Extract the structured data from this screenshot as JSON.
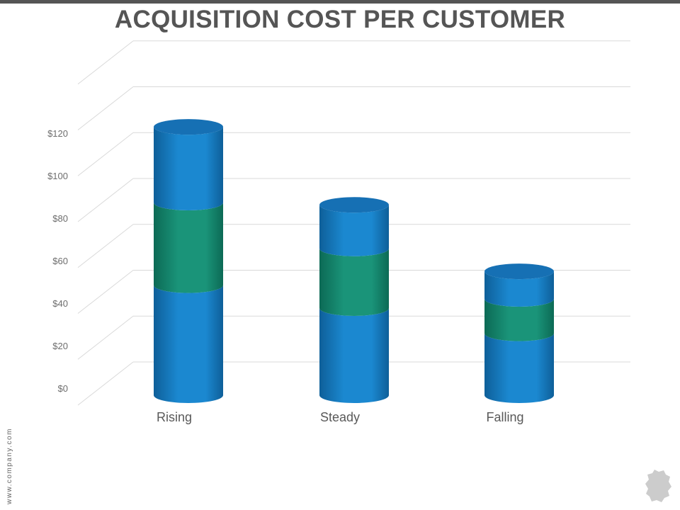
{
  "title": "ACQUISITION COST PER CUSTOMER",
  "footer_url": "www.company.com",
  "colors": {
    "blue": "#1b88d0",
    "green": "#1a9479",
    "cap": "#1670b4",
    "grid": "#d9d9d9",
    "tick_text": "#6d6d6d",
    "category_text": "#595959"
  },
  "chart_data": {
    "type": "bar",
    "stacked": true,
    "categories": [
      "Rising",
      "Steady",
      "Falling"
    ],
    "series": [
      {
        "values": [
          48,
          38,
          27
        ]
      },
      {
        "values": [
          36,
          26,
          15
        ]
      },
      {
        "values": [
          33,
          19,
          12
        ]
      }
    ],
    "series_colors": [
      "#1b88d0",
      "#1a9479",
      "#1b88d0"
    ],
    "y_ticks": [
      "$0",
      "$20",
      "$40",
      "$60",
      "$80",
      "$100",
      "$120"
    ],
    "ylim": [
      0,
      140
    ],
    "grid": true,
    "legend": "none"
  }
}
